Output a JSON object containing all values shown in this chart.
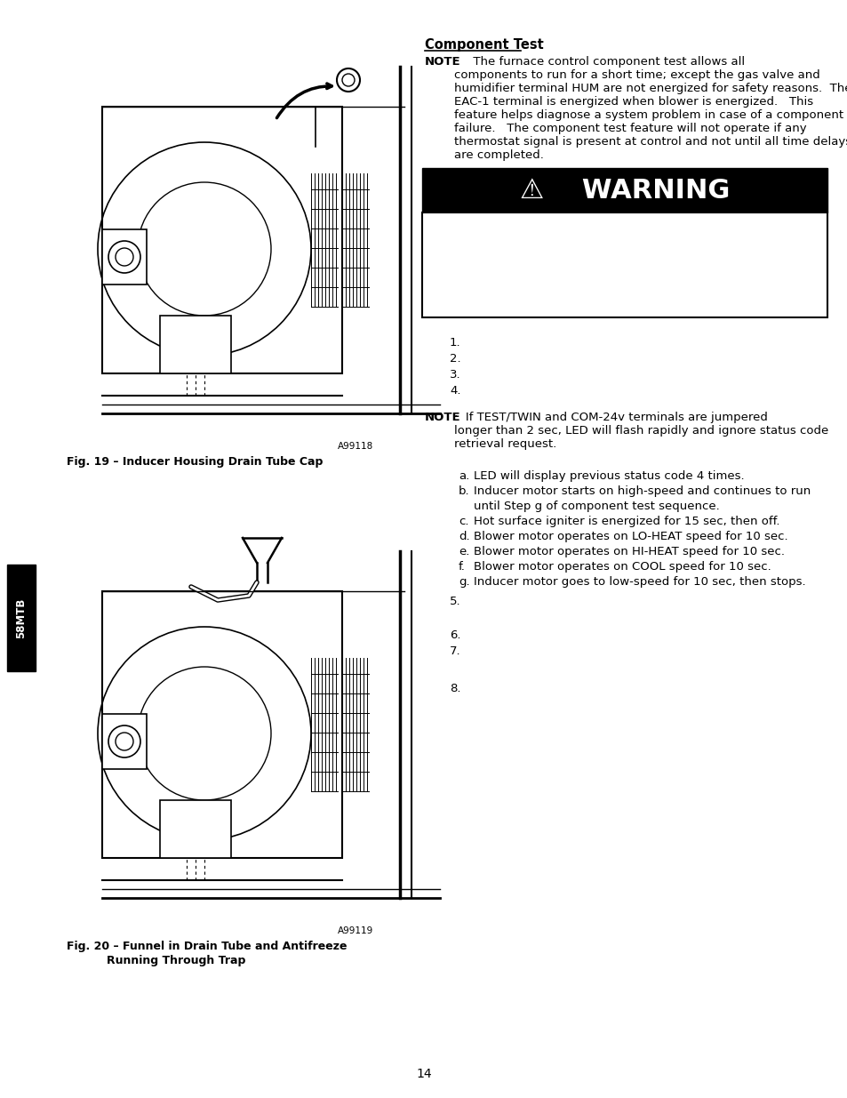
{
  "background_color": "#ffffff",
  "page_number": "14",
  "sidebar_text": "58MTB",
  "sidebar_bg": "#000000",
  "sidebar_text_color": "#ffffff",
  "section_title": "Component Test",
  "warning_header": "⚠    WARNING",
  "warning_bg": "#000000",
  "warning_text_color": "#ffffff",
  "numbered_items": [
    "1.",
    "2.",
    "3.",
    "4."
  ],
  "more_numbered": [
    "5.",
    "6.",
    "7.",
    "8."
  ],
  "fig19_label": "A99118",
  "fig19_caption": "Fig. 19 – Inducer Housing Drain Tube Cap",
  "fig20_label": "A99119",
  "fig20_caption_line1": "Fig. 20 – Funnel in Drain Tube and Antifreeze",
  "fig20_caption_line2": "Running Through Trap"
}
